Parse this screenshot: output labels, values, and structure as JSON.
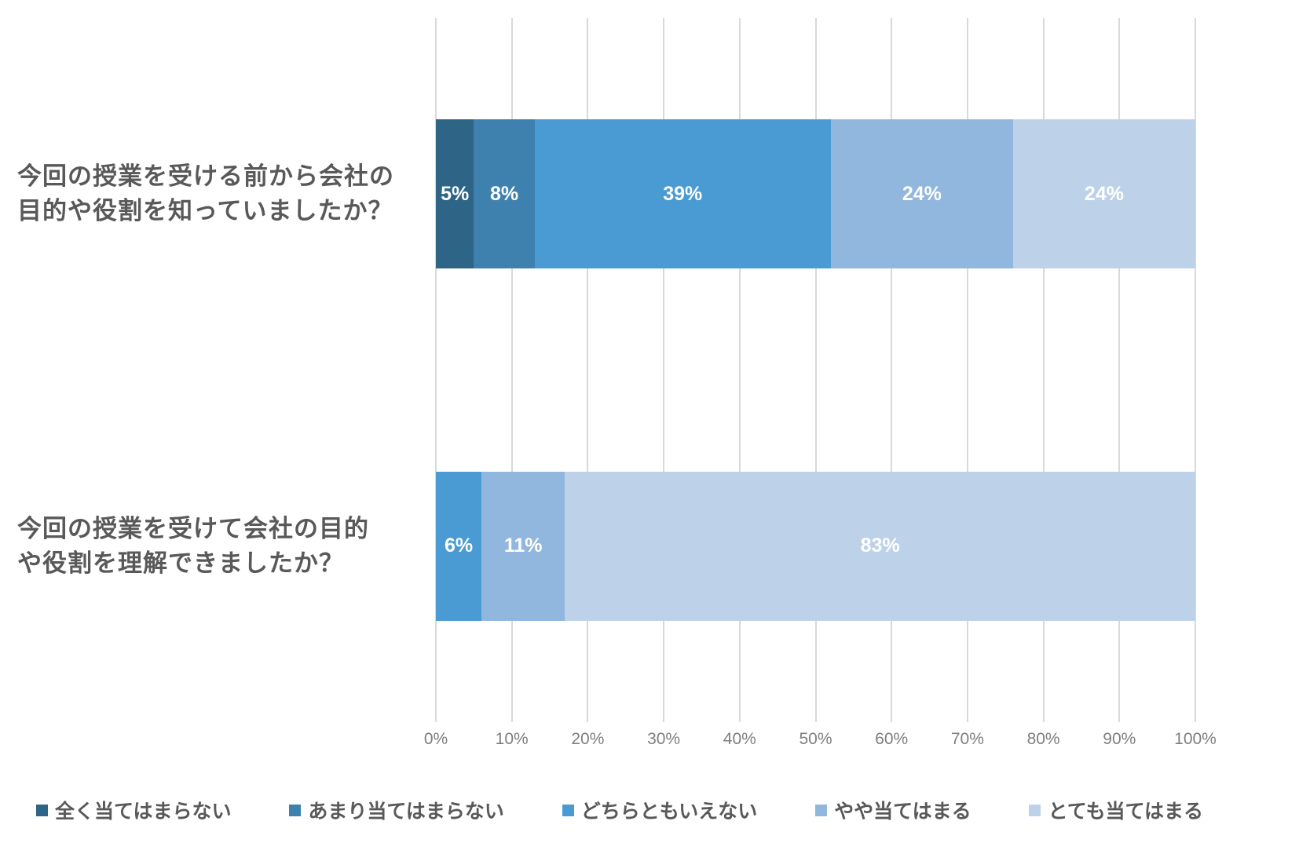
{
  "chart_data": {
    "type": "bar",
    "orientation": "horizontal",
    "stacked": true,
    "unit": "percent",
    "title": "",
    "categories": [
      "今回の授業を受ける前から会社の目的や役割を知っていましたか？",
      "今回の授業を受けて会社の目的や役割を理解できましたか？"
    ],
    "category_label_lines": [
      [
        "今回の授業を受ける前から会社の",
        "目的や役割を知っていましたか？"
      ],
      [
        "今回の授業を受けて会社の目的",
        "や役割を理解できましたか？"
      ]
    ],
    "series": [
      {
        "name": "全く当てはまらない",
        "color": "#2E6486",
        "values": [
          5,
          0
        ]
      },
      {
        "name": "あまり当てはまらない",
        "color": "#3E81AF",
        "values": [
          8,
          0
        ]
      },
      {
        "name": "どちらともいえない",
        "color": "#4A9BD3",
        "values": [
          39,
          6
        ]
      },
      {
        "name": "やや当てはまる",
        "color": "#92B7DE",
        "values": [
          24,
          11
        ]
      },
      {
        "name": "とても当てはまる",
        "color": "#BDD2E9",
        "values": [
          24,
          83
        ]
      }
    ],
    "data_labels": [
      [
        "5%",
        "8%",
        "39%",
        "24%",
        "24%"
      ],
      [
        "",
        "",
        "6%",
        "11%",
        "83%"
      ]
    ],
    "x_axis": {
      "min": 0,
      "max": 100,
      "tick_step": 10,
      "tick_labels": [
        "0%",
        "10%",
        "20%",
        "30%",
        "40%",
        "50%",
        "60%",
        "70%",
        "80%",
        "90%",
        "100%"
      ]
    },
    "grid": true,
    "legend_position": "bottom"
  },
  "colors": {
    "background": "#FFFFFF",
    "gridline": "#D9D9D9",
    "axis_text": "#7F7F7F",
    "category_text": "#595959",
    "legend_text": "#595959",
    "data_label_text": "#FFFFFF"
  }
}
